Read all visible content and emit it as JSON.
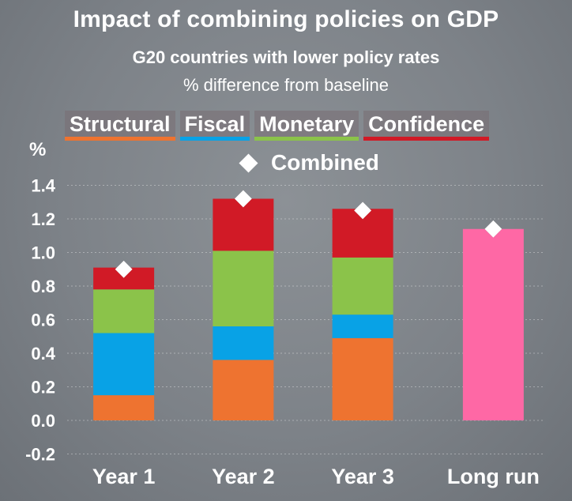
{
  "chart_data": {
    "type": "bar",
    "stacked": true,
    "title": "Impact of combining policies on GDP",
    "subtitle": "G20 countries with lower policy rates",
    "subtitle2": "% difference from baseline",
    "ylabel": "%",
    "ylim": [
      -0.2,
      1.4
    ],
    "yticks": [
      -0.2,
      0.0,
      0.2,
      0.4,
      0.6,
      0.8,
      1.0,
      1.2,
      1.4
    ],
    "ytick_labels": [
      "-0.2",
      "0.0",
      "0.2",
      "0.4",
      "0.6",
      "0.8",
      "1.0",
      "1.2",
      "1.4"
    ],
    "grid": true,
    "legend_position": "top",
    "categories": [
      "Year 1",
      "Year 2",
      "Year 3",
      "Long run"
    ],
    "series": [
      {
        "name": "Structural",
        "color": "#ee7330",
        "values": [
          0.15,
          0.36,
          0.49,
          0
        ]
      },
      {
        "name": "Fiscal",
        "color": "#08a2e6",
        "values": [
          0.37,
          0.2,
          0.14,
          0
        ]
      },
      {
        "name": "Monetary",
        "color": "#8bc34a",
        "values": [
          0.26,
          0.45,
          0.34,
          0
        ]
      },
      {
        "name": "Confidence",
        "color": "#d11a26",
        "values": [
          0.13,
          0.31,
          0.29,
          0
        ]
      }
    ],
    "long_run_bar": {
      "value": 1.14,
      "color": "#fe68a5"
    },
    "combined": {
      "name": "Combined",
      "values": [
        0.9,
        1.32,
        1.25,
        1.14
      ],
      "marker": "diamond",
      "color": "#ffffff"
    }
  }
}
